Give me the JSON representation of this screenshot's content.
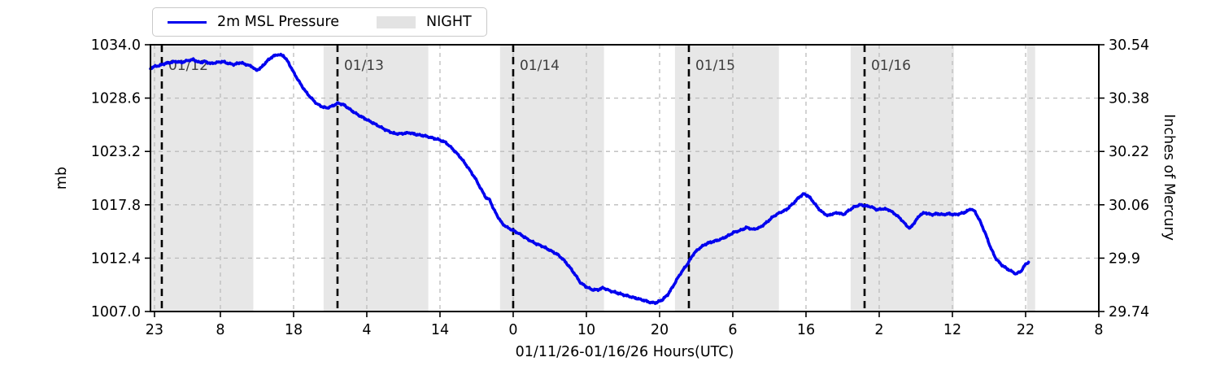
{
  "colors": {
    "line": "#0000ee",
    "night_band": "#e7e7e7",
    "grid": "#bcbcbc",
    "day_line": "#000000",
    "day_label": "#3d3d3d",
    "axis": "#000000",
    "legend_night_swatch": "#e3e3e3"
  },
  "legend": {
    "series_label": "2m MSL Pressure",
    "night_label": "NIGHT"
  },
  "axes": {
    "left_label": "mb",
    "right_label": "Inches of Mercury",
    "x_label": "01/11/26-01/16/26  Hours(UTC)",
    "left_ticks": [
      {
        "label": "1034.0",
        "mb": 1034.0
      },
      {
        "label": "1028.6",
        "mb": 1028.6
      },
      {
        "label": "1023.2",
        "mb": 1023.2
      },
      {
        "label": "1017.8",
        "mb": 1017.8
      },
      {
        "label": "1012.4",
        "mb": 1012.4
      },
      {
        "label": "1007.0",
        "mb": 1007.0
      }
    ],
    "right_ticks": [
      {
        "label": "30.54",
        "inhg": 30.54
      },
      {
        "label": "30.38",
        "inhg": 30.38
      },
      {
        "label": "30.22",
        "inhg": 30.22
      },
      {
        "label": "30.06",
        "inhg": 30.06
      },
      {
        "label": "29.9",
        "inhg": 29.9
      },
      {
        "label": "29.74",
        "inhg": 29.74
      }
    ],
    "x_ticks": [
      {
        "hour": 23,
        "label": "23"
      },
      {
        "hour": 32,
        "label": "8"
      },
      {
        "hour": 42,
        "label": "18"
      },
      {
        "hour": 52,
        "label": "4"
      },
      {
        "hour": 62,
        "label": "14"
      },
      {
        "hour": 72,
        "label": "0"
      },
      {
        "hour": 82,
        "label": "10"
      },
      {
        "hour": 92,
        "label": "20"
      },
      {
        "hour": 102,
        "label": "6"
      },
      {
        "hour": 112,
        "label": "16"
      },
      {
        "hour": 122,
        "label": "2"
      },
      {
        "hour": 132,
        "label": "12"
      },
      {
        "hour": 142,
        "label": "22"
      },
      {
        "hour": 152,
        "label": "8"
      }
    ]
  },
  "chart_data": {
    "type": "line",
    "title": "",
    "xlabel": "01/11/26-01/16/26  Hours(UTC)",
    "ylabel_left": "mb",
    "ylabel_right": "Inches of Mercury",
    "hours_origin": "01/11/26 00:00 UTC",
    "xlim_hours": [
      22.45,
      152.0
    ],
    "ylim_mb": [
      1007.0,
      1034.0
    ],
    "ylim_inhg": [
      29.74,
      30.54
    ],
    "grid": true,
    "legend_position": "top-left-outside",
    "day_markers": [
      {
        "hour": 24,
        "label": "01/12"
      },
      {
        "hour": 48,
        "label": "01/13"
      },
      {
        "hour": 72,
        "label": "01/14"
      },
      {
        "hour": 96,
        "label": "01/15"
      },
      {
        "hour": 120,
        "label": "01/16"
      }
    ],
    "night_bands_hours": [
      [
        22.45,
        36.5
      ],
      [
        46.1,
        60.4
      ],
      [
        70.2,
        84.4
      ],
      [
        94.1,
        108.3
      ],
      [
        118.1,
        132.2
      ],
      [
        142.2,
        143.3
      ]
    ],
    "series": [
      {
        "name": "2m MSL Pressure",
        "units": "mb",
        "points_hour_mb": [
          [
            22.45,
            1031.6
          ],
          [
            23.0,
            1031.8
          ],
          [
            23.7,
            1031.9
          ],
          [
            24.4,
            1032.1
          ],
          [
            25.1,
            1032.2
          ],
          [
            25.9,
            1032.3
          ],
          [
            26.7,
            1032.2
          ],
          [
            27.5,
            1032.4
          ],
          [
            28.3,
            1032.5
          ],
          [
            29.1,
            1032.2
          ],
          [
            29.9,
            1032.3
          ],
          [
            30.7,
            1032.1
          ],
          [
            31.5,
            1032.2
          ],
          [
            32.3,
            1032.3
          ],
          [
            33.1,
            1032.1
          ],
          [
            33.9,
            1032.0
          ],
          [
            34.7,
            1032.2
          ],
          [
            35.5,
            1032.0
          ],
          [
            36.3,
            1031.8
          ],
          [
            36.9,
            1031.4
          ],
          [
            37.6,
            1031.7
          ],
          [
            38.3,
            1032.3
          ],
          [
            39.1,
            1032.8
          ],
          [
            39.8,
            1033.0
          ],
          [
            40.6,
            1032.9
          ],
          [
            41.3,
            1032.2
          ],
          [
            42.0,
            1031.2
          ],
          [
            42.8,
            1030.2
          ],
          [
            43.6,
            1029.3
          ],
          [
            44.4,
            1028.6
          ],
          [
            45.2,
            1028.0
          ],
          [
            46.0,
            1027.7
          ],
          [
            46.6,
            1027.6
          ],
          [
            47.3,
            1027.8
          ],
          [
            48.1,
            1028.1
          ],
          [
            48.9,
            1027.9
          ],
          [
            49.8,
            1027.4
          ],
          [
            50.8,
            1026.9
          ],
          [
            51.8,
            1026.5
          ],
          [
            52.8,
            1026.1
          ],
          [
            53.8,
            1025.7
          ],
          [
            54.8,
            1025.3
          ],
          [
            55.8,
            1025.0
          ],
          [
            56.8,
            1025.0
          ],
          [
            57.8,
            1025.1
          ],
          [
            58.8,
            1024.9
          ],
          [
            59.8,
            1024.8
          ],
          [
            60.8,
            1024.6
          ],
          [
            61.8,
            1024.4
          ],
          [
            62.8,
            1024.1
          ],
          [
            63.8,
            1023.4
          ],
          [
            64.8,
            1022.6
          ],
          [
            65.8,
            1021.6
          ],
          [
            66.8,
            1020.5
          ],
          [
            67.6,
            1019.4
          ],
          [
            68.3,
            1018.5
          ],
          [
            68.8,
            1018.3
          ],
          [
            69.3,
            1017.4
          ],
          [
            69.9,
            1016.6
          ],
          [
            70.5,
            1015.9
          ],
          [
            71.2,
            1015.5
          ],
          [
            72.0,
            1015.2
          ],
          [
            73.0,
            1014.8
          ],
          [
            74.0,
            1014.3
          ],
          [
            75.0,
            1013.9
          ],
          [
            76.0,
            1013.6
          ],
          [
            77.0,
            1013.2
          ],
          [
            78.0,
            1012.8
          ],
          [
            78.8,
            1012.3
          ],
          [
            79.6,
            1011.6
          ],
          [
            80.4,
            1010.8
          ],
          [
            81.2,
            1009.9
          ],
          [
            82.0,
            1009.5
          ],
          [
            82.8,
            1009.2
          ],
          [
            83.6,
            1009.2
          ],
          [
            84.3,
            1009.4
          ],
          [
            85.2,
            1009.1
          ],
          [
            86.1,
            1008.9
          ],
          [
            87.0,
            1008.7
          ],
          [
            88.0,
            1008.5
          ],
          [
            89.0,
            1008.3
          ],
          [
            90.0,
            1008.1
          ],
          [
            90.8,
            1007.9
          ],
          [
            91.6,
            1007.9
          ],
          [
            92.4,
            1008.2
          ],
          [
            93.1,
            1008.7
          ],
          [
            93.8,
            1009.5
          ],
          [
            94.4,
            1010.3
          ],
          [
            95.0,
            1011.0
          ],
          [
            95.8,
            1011.8
          ],
          [
            96.7,
            1012.9
          ],
          [
            97.6,
            1013.5
          ],
          [
            98.5,
            1013.9
          ],
          [
            99.4,
            1014.1
          ],
          [
            100.3,
            1014.3
          ],
          [
            101.2,
            1014.6
          ],
          [
            102.1,
            1015.0
          ],
          [
            103.0,
            1015.2
          ],
          [
            103.9,
            1015.5
          ],
          [
            104.8,
            1015.3
          ],
          [
            105.7,
            1015.5
          ],
          [
            106.6,
            1016.0
          ],
          [
            107.5,
            1016.6
          ],
          [
            108.4,
            1017.0
          ],
          [
            109.3,
            1017.3
          ],
          [
            110.2,
            1017.9
          ],
          [
            111.1,
            1018.6
          ],
          [
            111.7,
            1018.9
          ],
          [
            112.3,
            1018.7
          ],
          [
            112.9,
            1018.2
          ],
          [
            113.6,
            1017.5
          ],
          [
            114.3,
            1017.0
          ],
          [
            115.0,
            1016.7
          ],
          [
            115.7,
            1016.9
          ],
          [
            116.4,
            1017.0
          ],
          [
            117.1,
            1016.8
          ],
          [
            117.8,
            1017.2
          ],
          [
            118.6,
            1017.6
          ],
          [
            119.4,
            1017.8
          ],
          [
            120.1,
            1017.7
          ],
          [
            120.9,
            1017.6
          ],
          [
            121.7,
            1017.3
          ],
          [
            122.5,
            1017.4
          ],
          [
            123.3,
            1017.3
          ],
          [
            124.1,
            1016.9
          ],
          [
            124.9,
            1016.4
          ],
          [
            125.6,
            1015.8
          ],
          [
            126.2,
            1015.4
          ],
          [
            126.9,
            1016.1
          ],
          [
            127.6,
            1016.8
          ],
          [
            128.3,
            1017.0
          ],
          [
            129.1,
            1016.8
          ],
          [
            129.9,
            1016.9
          ],
          [
            130.7,
            1016.8
          ],
          [
            131.5,
            1016.9
          ],
          [
            132.3,
            1016.8
          ],
          [
            133.1,
            1016.9
          ],
          [
            133.9,
            1017.1
          ],
          [
            134.5,
            1017.4
          ],
          [
            135.1,
            1017.1
          ],
          [
            135.8,
            1016.1
          ],
          [
            136.5,
            1014.9
          ],
          [
            137.2,
            1013.5
          ],
          [
            137.9,
            1012.4
          ],
          [
            138.6,
            1011.8
          ],
          [
            139.3,
            1011.4
          ],
          [
            140.0,
            1011.1
          ],
          [
            140.7,
            1010.8
          ],
          [
            141.4,
            1011.1
          ],
          [
            142.0,
            1011.8
          ],
          [
            142.4,
            1012.0
          ]
        ]
      }
    ]
  }
}
